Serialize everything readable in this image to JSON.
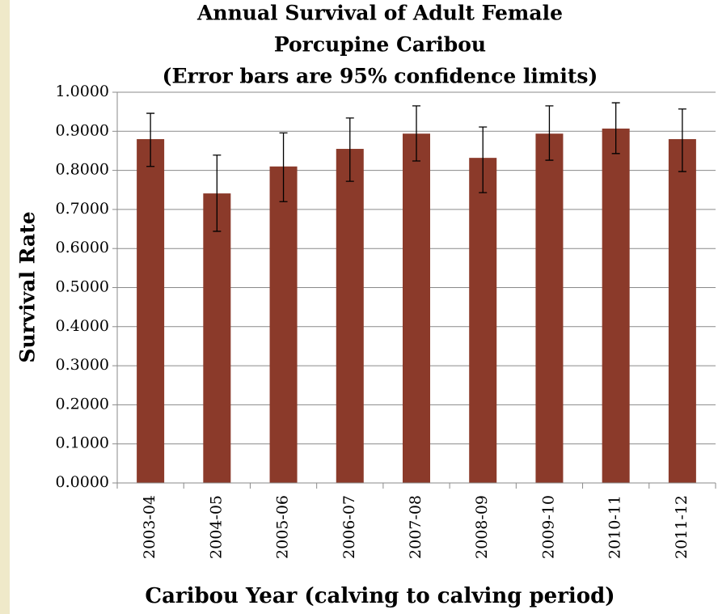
{
  "chart_data": {
    "type": "bar",
    "title": [
      "Annual Survival of Adult Female",
      "Porcupine Caribou",
      "(Error bars are 95% confidence limits)"
    ],
    "x_label": "Caribou Year (calving to calving period)",
    "y_label": "Survival Rate",
    "categories": [
      "2003-04",
      "2004-05",
      "2005-06",
      "2006-07",
      "2007-08",
      "2008-09",
      "2009-10",
      "2010-11",
      "2011-12"
    ],
    "values": [
      0.88,
      0.741,
      0.81,
      0.855,
      0.894,
      0.832,
      0.894,
      0.907,
      0.88
    ],
    "lower": [
      0.81,
      0.644,
      0.72,
      0.772,
      0.824,
      0.743,
      0.826,
      0.843,
      0.797
    ],
    "upper": [
      0.946,
      0.839,
      0.896,
      0.934,
      0.965,
      0.911,
      0.965,
      0.973,
      0.957
    ],
    "color": "#8b3a2a",
    "ylim": [
      0,
      1
    ],
    "yticks": [
      {
        "value": 0,
        "label": "0.0000"
      },
      {
        "value": 0.1,
        "label": "0.1000"
      },
      {
        "value": 0.2,
        "label": "0.2000"
      },
      {
        "value": 0.3,
        "label": "0.3000"
      },
      {
        "value": 0.4,
        "label": "0.4000"
      },
      {
        "value": 0.5,
        "label": "0.5000"
      },
      {
        "value": 0.6,
        "label": "0.6000"
      },
      {
        "value": 0.7,
        "label": "0.7000"
      },
      {
        "value": 0.8,
        "label": "0.8000"
      },
      {
        "value": 0.9,
        "label": "0.9000"
      },
      {
        "value": 1,
        "label": "1.0000"
      }
    ],
    "grid": true
  }
}
